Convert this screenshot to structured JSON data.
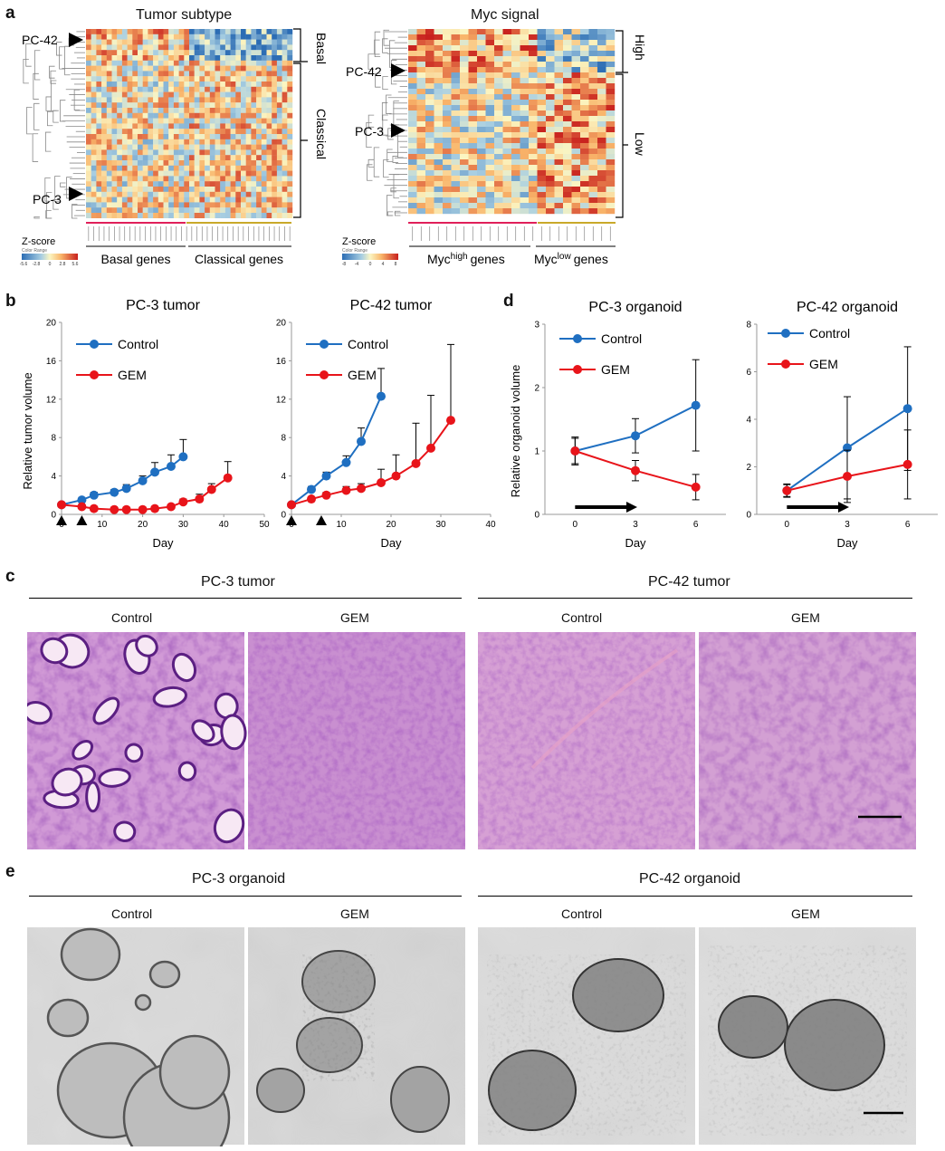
{
  "panel_a": {
    "letter": "a",
    "left_title": "Tumor subtype",
    "right_title": "Myc signal",
    "left_labels": {
      "pc42": "PC-42",
      "pc3": "PC-3",
      "basal": "Basal",
      "classical": "Classical",
      "zscore": "Z-score",
      "color_range": "Color Range",
      "basal_genes": "Basal genes",
      "classical_genes": "Classical genes",
      "scale": [
        "-5.6",
        "-2.8",
        "0",
        "2.8",
        "5.6"
      ]
    },
    "right_labels": {
      "pc42": "PC-42",
      "pc3": "PC-3",
      "high": "High",
      "low": "Low",
      "zscore": "Z-score",
      "color_range": "Color Range",
      "myc_prefix": "Myc",
      "high_sup": "high",
      "low_sup": "low",
      "genes": "genes",
      "scale": [
        "-8",
        "-4",
        "0",
        "4",
        "8"
      ]
    }
  },
  "panel_b": {
    "letter": "b",
    "ylabel": "Relative tumor volume",
    "charts": [
      {
        "title": "PC-3 tumor",
        "xlabel": "Day",
        "type": "line",
        "xlim": [
          0,
          50
        ],
        "ylim": [
          0,
          20
        ],
        "xticks": [
          0,
          10,
          20,
          30,
          40,
          50
        ],
        "yticks": [
          0,
          4,
          8,
          12,
          16,
          20
        ],
        "treatment_days": [
          0,
          5
        ],
        "series": [
          {
            "name": "Control",
            "color": "#1f6fc1",
            "x": [
              0,
              5,
              8,
              13,
              16,
              20,
              23,
              27,
              30
            ],
            "y": [
              1.0,
              1.5,
              2.0,
              2.3,
              2.7,
              3.5,
              4.4,
              5.0,
              6.0
            ],
            "err": [
              0.1,
              0.2,
              0.3,
              0.3,
              0.4,
              0.5,
              1.0,
              1.2,
              1.8
            ]
          },
          {
            "name": "GEM",
            "color": "#e8141a",
            "x": [
              0,
              5,
              8,
              13,
              16,
              20,
              23,
              27,
              30,
              34,
              37,
              41
            ],
            "y": [
              1.0,
              0.8,
              0.6,
              0.5,
              0.5,
              0.5,
              0.6,
              0.8,
              1.3,
              1.6,
              2.6,
              3.8
            ],
            "err": [
              0.1,
              0.1,
              0.1,
              0.1,
              0.1,
              0.1,
              0.1,
              0.2,
              0.3,
              0.5,
              0.6,
              1.7
            ]
          }
        ]
      },
      {
        "title": "PC-42 tumor",
        "xlabel": "Day",
        "type": "line",
        "xlim": [
          0,
          40
        ],
        "ylim": [
          0,
          20
        ],
        "xticks": [
          0,
          10,
          20,
          30,
          40
        ],
        "yticks": [
          0,
          4,
          8,
          12,
          16,
          20
        ],
        "treatment_days": [
          0,
          6
        ],
        "series": [
          {
            "name": "Control",
            "color": "#1f6fc1",
            "x": [
              0,
              4,
              7,
              11,
              14,
              18
            ],
            "y": [
              1.0,
              2.6,
              4.0,
              5.4,
              7.6,
              12.3
            ],
            "err": [
              0.1,
              0.3,
              0.4,
              0.7,
              1.4,
              2.9
            ]
          },
          {
            "name": "GEM",
            "color": "#e8141a",
            "x": [
              0,
              4,
              7,
              11,
              14,
              18,
              21,
              25,
              28,
              32
            ],
            "y": [
              1.0,
              1.6,
              2.0,
              2.5,
              2.7,
              3.3,
              4.0,
              5.3,
              6.9,
              9.8
            ],
            "err": [
              0.1,
              0.2,
              0.3,
              0.4,
              0.5,
              1.4,
              2.2,
              4.2,
              5.5,
              7.9
            ]
          }
        ]
      }
    ]
  },
  "panel_d": {
    "letter": "d",
    "ylabel": "Relative organoid volume",
    "charts": [
      {
        "title": "PC-3 organoid",
        "xlabel": "Day",
        "type": "line",
        "categories": [
          "0",
          "3",
          "6"
        ],
        "ylim": [
          0,
          3
        ],
        "yticks": [
          0,
          1,
          2,
          3
        ],
        "series": [
          {
            "name": "Control",
            "color": "#1f6fc1",
            "values": [
              1.0,
              1.24,
              1.72
            ],
            "err": [
              0.22,
              0.27,
              0.72
            ]
          },
          {
            "name": "GEM",
            "color": "#e8141a",
            "values": [
              1.0,
              0.69,
              0.43
            ],
            "err": [
              0.2,
              0.16,
              0.2
            ]
          }
        ]
      },
      {
        "title": "PC-42 organoid",
        "xlabel": "Day",
        "type": "line",
        "categories": [
          "0",
          "3",
          "6"
        ],
        "ylim": [
          0,
          8
        ],
        "yticks": [
          0,
          2,
          4,
          6,
          8
        ],
        "series": [
          {
            "name": "Control",
            "color": "#1f6fc1",
            "values": [
              1.0,
              2.8,
              4.45
            ],
            "err": [
              0.28,
              2.15,
              2.6
            ]
          },
          {
            "name": "GEM",
            "color": "#e8141a",
            "values": [
              1.0,
              1.6,
              2.1
            ],
            "err": [
              0.25,
              1.1,
              1.45
            ]
          }
        ]
      }
    ]
  },
  "panel_c": {
    "letter": "c",
    "groups": [
      {
        "title": "PC-3 tumor",
        "conditions": [
          "Control",
          "GEM"
        ]
      },
      {
        "title": "PC-42 tumor",
        "conditions": [
          "Control",
          "GEM"
        ]
      }
    ]
  },
  "panel_e": {
    "letter": "e",
    "groups": [
      {
        "title": "PC-3 organoid",
        "conditions": [
          "Control",
          "GEM"
        ]
      },
      {
        "title": "PC-42 organoid",
        "conditions": [
          "Control",
          "GEM"
        ]
      }
    ]
  },
  "colors": {
    "control": "#1f6fc1",
    "gem": "#e8141a",
    "he_base": "#c58fd0",
    "bf_base": "#cfcfcf"
  }
}
